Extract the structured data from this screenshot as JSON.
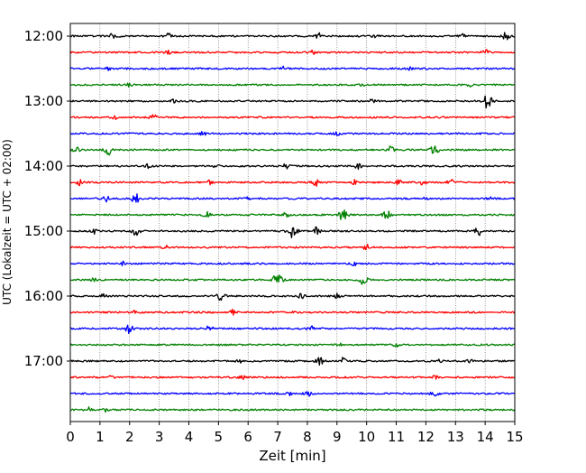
{
  "chart_data": {
    "type": "line",
    "xlabel": "Zeit  [min]",
    "ylabel": "UTC (Lokalzeit = UTC + 02:00)",
    "xlim": [
      0,
      15
    ],
    "x_ticks": [
      0,
      1,
      2,
      3,
      4,
      5,
      6,
      7,
      8,
      9,
      10,
      11,
      12,
      13,
      14,
      15
    ],
    "x_tick_labels": [
      "0",
      "1",
      "2",
      "3",
      "4",
      "5",
      "6",
      "7",
      "8",
      "9",
      "10",
      "11",
      "12",
      "13",
      "14",
      "15"
    ],
    "y_tick_labels": [
      "12:00",
      "13:00",
      "14:00",
      "15:00",
      "16:00",
      "17:00"
    ],
    "y_tick_rows": [
      0,
      4,
      8,
      12,
      16,
      20
    ],
    "minutes_per_row": 15,
    "grid": "vertical dotted at every minute",
    "colors": [
      "#000000",
      "#ff0000",
      "#0000ff",
      "#008000"
    ],
    "rows": [
      {
        "start": "12:00",
        "color": "#000000",
        "events": [
          [
            1.5,
            5
          ],
          [
            3.3,
            3
          ],
          [
            8.4,
            3
          ],
          [
            10.3,
            2
          ],
          [
            13.2,
            3
          ],
          [
            14.7,
            4
          ]
        ]
      },
      {
        "start": "12:15",
        "color": "#ff0000",
        "events": [
          [
            3.3,
            2
          ],
          [
            8.2,
            2
          ],
          [
            14.0,
            3
          ]
        ]
      },
      {
        "start": "12:30",
        "color": "#0000ff",
        "events": [
          [
            1.3,
            2
          ],
          [
            7.2,
            2
          ],
          [
            11.5,
            2
          ]
        ]
      },
      {
        "start": "12:45",
        "color": "#008000",
        "events": [
          [
            2.0,
            2
          ],
          [
            9.8,
            2
          ],
          [
            13.5,
            2
          ]
        ]
      },
      {
        "start": "13:00",
        "color": "#000000",
        "events": [
          [
            3.5,
            2
          ],
          [
            10.2,
            2
          ],
          [
            14.1,
            8
          ]
        ]
      },
      {
        "start": "13:15",
        "color": "#ff0000",
        "events": [
          [
            1.5,
            2
          ],
          [
            2.8,
            3
          ]
        ]
      },
      {
        "start": "13:30",
        "color": "#0000ff",
        "events": [
          [
            4.5,
            3
          ],
          [
            9.0,
            2
          ]
        ]
      },
      {
        "start": "13:45",
        "color": "#008000",
        "events": [
          [
            0.2,
            3
          ],
          [
            1.3,
            5
          ],
          [
            10.8,
            4
          ],
          [
            12.3,
            5
          ]
        ]
      },
      {
        "start": "14:00",
        "color": "#000000",
        "events": [
          [
            2.6,
            2
          ],
          [
            4.9,
            2
          ],
          [
            7.3,
            3
          ],
          [
            9.7,
            3
          ]
        ]
      },
      {
        "start": "14:15",
        "color": "#ff0000",
        "events": [
          [
            0.3,
            3
          ],
          [
            4.7,
            2
          ],
          [
            8.3,
            4
          ],
          [
            9.6,
            3
          ],
          [
            11.1,
            3
          ],
          [
            11.9,
            3
          ],
          [
            12.8,
            4
          ]
        ]
      },
      {
        "start": "14:30",
        "color": "#0000ff",
        "events": [
          [
            1.2,
            3
          ],
          [
            2.2,
            5
          ],
          [
            6.0,
            2
          ],
          [
            12.0,
            2
          ],
          [
            14.2,
            3
          ]
        ]
      },
      {
        "start": "14:45",
        "color": "#008000",
        "events": [
          [
            4.6,
            3
          ],
          [
            7.3,
            3
          ],
          [
            9.2,
            6
          ],
          [
            10.7,
            5
          ]
        ]
      },
      {
        "start": "15:00",
        "color": "#000000",
        "events": [
          [
            0.8,
            3
          ],
          [
            2.2,
            5
          ],
          [
            7.5,
            7
          ],
          [
            8.3,
            4
          ],
          [
            13.8,
            5
          ]
        ]
      },
      {
        "start": "15:15",
        "color": "#ff0000",
        "events": [
          [
            3.2,
            2
          ],
          [
            10.0,
            3
          ]
        ]
      },
      {
        "start": "15:30",
        "color": "#0000ff",
        "events": [
          [
            1.8,
            2
          ],
          [
            9.6,
            3
          ]
        ]
      },
      {
        "start": "15:45",
        "color": "#008000",
        "events": [
          [
            0.8,
            2
          ],
          [
            7.0,
            7
          ],
          [
            9.9,
            5
          ]
        ]
      },
      {
        "start": "16:00",
        "color": "#000000",
        "events": [
          [
            1.1,
            2
          ],
          [
            5.1,
            5
          ],
          [
            7.8,
            3
          ],
          [
            9.0,
            3
          ]
        ]
      },
      {
        "start": "16:15",
        "color": "#ff0000",
        "events": [
          [
            2.2,
            2
          ],
          [
            5.5,
            3
          ],
          [
            7.6,
            2
          ]
        ]
      },
      {
        "start": "16:30",
        "color": "#0000ff",
        "events": [
          [
            2.0,
            5
          ],
          [
            4.7,
            3
          ],
          [
            8.1,
            3
          ]
        ]
      },
      {
        "start": "16:45",
        "color": "#008000",
        "events": [
          [
            9.1,
            2
          ],
          [
            11.0,
            2
          ]
        ]
      },
      {
        "start": "17:00",
        "color": "#000000",
        "events": [
          [
            5.7,
            2
          ],
          [
            8.4,
            5
          ],
          [
            9.2,
            4
          ],
          [
            12.5,
            3
          ],
          [
            13.5,
            2
          ]
        ]
      },
      {
        "start": "17:15",
        "color": "#ff0000",
        "events": [
          [
            1.4,
            2
          ],
          [
            5.8,
            2
          ],
          [
            12.3,
            2
          ]
        ]
      },
      {
        "start": "17:30",
        "color": "#0000ff",
        "events": [
          [
            7.4,
            2
          ],
          [
            8.0,
            3
          ],
          [
            12.3,
            4
          ]
        ]
      },
      {
        "start": "17:45",
        "color": "#008000",
        "events": [
          [
            0.6,
            3
          ],
          [
            1.2,
            2
          ]
        ]
      }
    ]
  }
}
